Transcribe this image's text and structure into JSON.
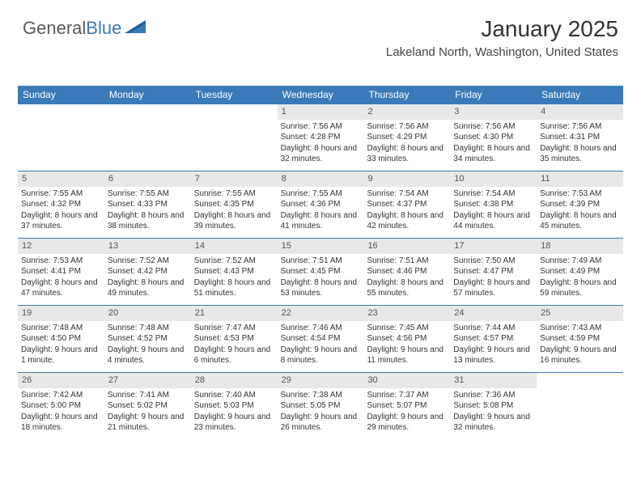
{
  "logo": {
    "general": "General",
    "blue": "Blue"
  },
  "header": {
    "title": "January 2025",
    "location": "Lakeland North, Washington, United States"
  },
  "colors": {
    "header_bg": "#3a7ab8",
    "header_text": "#ffffff",
    "daynum_bg": "#e8e8e8",
    "row_border": "#3a7ab8",
    "page_bg": "#ffffff",
    "text": "#333333"
  },
  "fonts": {
    "title_size": 28,
    "location_size": 15,
    "weekday_size": 12,
    "daynum_size": 11,
    "detail_size": 10
  },
  "weekdays": [
    "Sunday",
    "Monday",
    "Tuesday",
    "Wednesday",
    "Thursday",
    "Friday",
    "Saturday"
  ],
  "weeks": [
    [
      {
        "day": "",
        "sunrise": "",
        "sunset": "",
        "daylight": ""
      },
      {
        "day": "",
        "sunrise": "",
        "sunset": "",
        "daylight": ""
      },
      {
        "day": "",
        "sunrise": "",
        "sunset": "",
        "daylight": ""
      },
      {
        "day": "1",
        "sunrise": "Sunrise: 7:56 AM",
        "sunset": "Sunset: 4:28 PM",
        "daylight": "Daylight: 8 hours and 32 minutes."
      },
      {
        "day": "2",
        "sunrise": "Sunrise: 7:56 AM",
        "sunset": "Sunset: 4:29 PM",
        "daylight": "Daylight: 8 hours and 33 minutes."
      },
      {
        "day": "3",
        "sunrise": "Sunrise: 7:56 AM",
        "sunset": "Sunset: 4:30 PM",
        "daylight": "Daylight: 8 hours and 34 minutes."
      },
      {
        "day": "4",
        "sunrise": "Sunrise: 7:56 AM",
        "sunset": "Sunset: 4:31 PM",
        "daylight": "Daylight: 8 hours and 35 minutes."
      }
    ],
    [
      {
        "day": "5",
        "sunrise": "Sunrise: 7:55 AM",
        "sunset": "Sunset: 4:32 PM",
        "daylight": "Daylight: 8 hours and 37 minutes."
      },
      {
        "day": "6",
        "sunrise": "Sunrise: 7:55 AM",
        "sunset": "Sunset: 4:33 PM",
        "daylight": "Daylight: 8 hours and 38 minutes."
      },
      {
        "day": "7",
        "sunrise": "Sunrise: 7:55 AM",
        "sunset": "Sunset: 4:35 PM",
        "daylight": "Daylight: 8 hours and 39 minutes."
      },
      {
        "day": "8",
        "sunrise": "Sunrise: 7:55 AM",
        "sunset": "Sunset: 4:36 PM",
        "daylight": "Daylight: 8 hours and 41 minutes."
      },
      {
        "day": "9",
        "sunrise": "Sunrise: 7:54 AM",
        "sunset": "Sunset: 4:37 PM",
        "daylight": "Daylight: 8 hours and 42 minutes."
      },
      {
        "day": "10",
        "sunrise": "Sunrise: 7:54 AM",
        "sunset": "Sunset: 4:38 PM",
        "daylight": "Daylight: 8 hours and 44 minutes."
      },
      {
        "day": "11",
        "sunrise": "Sunrise: 7:53 AM",
        "sunset": "Sunset: 4:39 PM",
        "daylight": "Daylight: 8 hours and 45 minutes."
      }
    ],
    [
      {
        "day": "12",
        "sunrise": "Sunrise: 7:53 AM",
        "sunset": "Sunset: 4:41 PM",
        "daylight": "Daylight: 8 hours and 47 minutes."
      },
      {
        "day": "13",
        "sunrise": "Sunrise: 7:52 AM",
        "sunset": "Sunset: 4:42 PM",
        "daylight": "Daylight: 8 hours and 49 minutes."
      },
      {
        "day": "14",
        "sunrise": "Sunrise: 7:52 AM",
        "sunset": "Sunset: 4:43 PM",
        "daylight": "Daylight: 8 hours and 51 minutes."
      },
      {
        "day": "15",
        "sunrise": "Sunrise: 7:51 AM",
        "sunset": "Sunset: 4:45 PM",
        "daylight": "Daylight: 8 hours and 53 minutes."
      },
      {
        "day": "16",
        "sunrise": "Sunrise: 7:51 AM",
        "sunset": "Sunset: 4:46 PM",
        "daylight": "Daylight: 8 hours and 55 minutes."
      },
      {
        "day": "17",
        "sunrise": "Sunrise: 7:50 AM",
        "sunset": "Sunset: 4:47 PM",
        "daylight": "Daylight: 8 hours and 57 minutes."
      },
      {
        "day": "18",
        "sunrise": "Sunrise: 7:49 AM",
        "sunset": "Sunset: 4:49 PM",
        "daylight": "Daylight: 8 hours and 59 minutes."
      }
    ],
    [
      {
        "day": "19",
        "sunrise": "Sunrise: 7:48 AM",
        "sunset": "Sunset: 4:50 PM",
        "daylight": "Daylight: 9 hours and 1 minute."
      },
      {
        "day": "20",
        "sunrise": "Sunrise: 7:48 AM",
        "sunset": "Sunset: 4:52 PM",
        "daylight": "Daylight: 9 hours and 4 minutes."
      },
      {
        "day": "21",
        "sunrise": "Sunrise: 7:47 AM",
        "sunset": "Sunset: 4:53 PM",
        "daylight": "Daylight: 9 hours and 6 minutes."
      },
      {
        "day": "22",
        "sunrise": "Sunrise: 7:46 AM",
        "sunset": "Sunset: 4:54 PM",
        "daylight": "Daylight: 9 hours and 8 minutes."
      },
      {
        "day": "23",
        "sunrise": "Sunrise: 7:45 AM",
        "sunset": "Sunset: 4:56 PM",
        "daylight": "Daylight: 9 hours and 11 minutes."
      },
      {
        "day": "24",
        "sunrise": "Sunrise: 7:44 AM",
        "sunset": "Sunset: 4:57 PM",
        "daylight": "Daylight: 9 hours and 13 minutes."
      },
      {
        "day": "25",
        "sunrise": "Sunrise: 7:43 AM",
        "sunset": "Sunset: 4:59 PM",
        "daylight": "Daylight: 9 hours and 16 minutes."
      }
    ],
    [
      {
        "day": "26",
        "sunrise": "Sunrise: 7:42 AM",
        "sunset": "Sunset: 5:00 PM",
        "daylight": "Daylight: 9 hours and 18 minutes."
      },
      {
        "day": "27",
        "sunrise": "Sunrise: 7:41 AM",
        "sunset": "Sunset: 5:02 PM",
        "daylight": "Daylight: 9 hours and 21 minutes."
      },
      {
        "day": "28",
        "sunrise": "Sunrise: 7:40 AM",
        "sunset": "Sunset: 5:03 PM",
        "daylight": "Daylight: 9 hours and 23 minutes."
      },
      {
        "day": "29",
        "sunrise": "Sunrise: 7:38 AM",
        "sunset": "Sunset: 5:05 PM",
        "daylight": "Daylight: 9 hours and 26 minutes."
      },
      {
        "day": "30",
        "sunrise": "Sunrise: 7:37 AM",
        "sunset": "Sunset: 5:07 PM",
        "daylight": "Daylight: 9 hours and 29 minutes."
      },
      {
        "day": "31",
        "sunrise": "Sunrise: 7:36 AM",
        "sunset": "Sunset: 5:08 PM",
        "daylight": "Daylight: 9 hours and 32 minutes."
      },
      {
        "day": "",
        "sunrise": "",
        "sunset": "",
        "daylight": ""
      }
    ]
  ]
}
